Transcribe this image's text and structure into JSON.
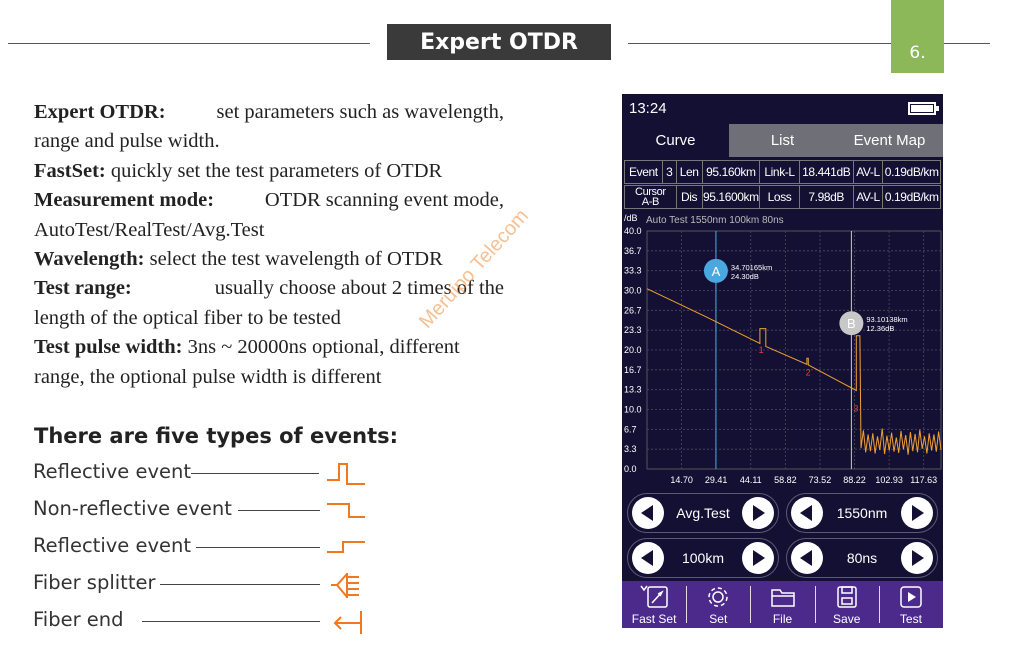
{
  "header": {
    "title": "Expert OTDR",
    "page_number": "6."
  },
  "description": {
    "items": [
      {
        "term": "Expert OTDR:",
        "text1": "set parameters such as wavelength,",
        "text2": "range and pulse width."
      },
      {
        "term": "FastSet:",
        "text1": "quickly set the test parameters of OTDR"
      },
      {
        "term": "Measurement mode:",
        "text1": "OTDR scanning event mode,",
        "text2": "AutoTest/RealTest/Avg.Test"
      },
      {
        "term": "Wavelength:",
        "text1": "select the test wavelength of OTDR"
      },
      {
        "term": "Test range:",
        "text1": "usually choose about 2 times of the",
        "text2": "length of the optical fiber to be tested"
      },
      {
        "term": "Test pulse width:",
        "text1": "3ns ~ 20000ns optional, different",
        "text2": "range, the optional pulse width is different"
      }
    ],
    "watermark": "Meruipo Telecom"
  },
  "events": {
    "title": "There are five types of events:",
    "items": [
      {
        "label": "Reflective event",
        "icon": "reflective-event-icon"
      },
      {
        "label": "Non-reflective event",
        "icon": "non-reflective-event-icon"
      },
      {
        "label": "Reflective event",
        "icon": "reflective-gain-event-icon"
      },
      {
        "label": "Fiber splitter",
        "icon": "fiber-splitter-icon"
      },
      {
        "label": "Fiber end",
        "icon": "fiber-end-icon"
      }
    ],
    "icon_color": "#f07820"
  },
  "device": {
    "time": "13:24",
    "tabs": {
      "curve": "Curve",
      "list": "List",
      "event_map": "Event Map"
    },
    "info": {
      "row1": {
        "event_label": "Event",
        "event_value": "3",
        "len_label": "Len",
        "len_value": "95.160km",
        "linkl_label": "Link-L",
        "linkl_value": "18.441dB",
        "avl_label": "AV-L",
        "avl_value": "0.19dB/km"
      },
      "row2": {
        "cursor_label1": "Cursor",
        "cursor_label2": "A-B",
        "dis_label": "Dis",
        "dis_value": "95.1600km",
        "loss_label": "Loss",
        "loss_value": "7.98dB",
        "avl_label": "AV-L",
        "avl_value": "0.19dB/km"
      }
    },
    "controls": {
      "mode": "Avg.Test",
      "wavelength": "1550nm",
      "range": "100km",
      "pulse": "80ns"
    },
    "bottom": {
      "fastset": "Fast Set",
      "set": "Set",
      "file": "File",
      "save": "Save",
      "test": "Test"
    }
  },
  "chart_data": {
    "type": "line",
    "ylabel": "/dB",
    "header_text": "Auto Test  1550nm  100km  80ns",
    "y_ticks": [
      "40.0",
      "36.7",
      "33.3",
      "30.0",
      "26.7",
      "23.3",
      "20.0",
      "16.7",
      "13.3",
      "10.0",
      "6.7",
      "3.3",
      "0.0"
    ],
    "x_ticks": [
      "14.70",
      "29.41",
      "44.11",
      "58.82",
      "73.52",
      "88.22",
      "102.93",
      "117.63"
    ],
    "ylim": [
      0,
      40
    ],
    "xlim": [
      0,
      125
    ],
    "grid": true,
    "trace": [
      [
        0,
        30.3
      ],
      [
        25,
        25.6
      ],
      [
        48,
        21.1
      ],
      [
        48,
        23.6
      ],
      [
        50.5,
        23.6
      ],
      [
        50.5,
        20.6
      ],
      [
        68,
        17.6
      ],
      [
        68,
        18.6
      ],
      [
        68.6,
        18.6
      ],
      [
        68.6,
        17.5
      ],
      [
        89,
        13.2
      ],
      [
        89,
        22.4
      ],
      [
        90.5,
        22.4
      ],
      [
        91,
        3.5
      ],
      [
        92,
        6.5
      ],
      [
        93,
        2.8
      ],
      [
        94,
        5.8
      ],
      [
        95,
        3.0
      ],
      [
        96,
        6.0
      ],
      [
        97,
        2.6
      ],
      [
        98,
        5.5
      ],
      [
        99,
        3.2
      ],
      [
        100,
        6.8
      ],
      [
        101,
        2.5
      ],
      [
        102,
        5.6
      ],
      [
        103,
        3.1
      ],
      [
        104,
        6.1
      ],
      [
        105,
        2.9
      ],
      [
        106,
        5.3
      ],
      [
        107,
        2.7
      ],
      [
        108,
        6.4
      ],
      [
        109,
        3.3
      ],
      [
        110,
        5.7
      ],
      [
        111,
        2.4
      ],
      [
        112,
        6.2
      ],
      [
        113,
        3.0
      ],
      [
        114,
        5.9
      ],
      [
        115,
        2.8
      ],
      [
        116,
        6.6
      ],
      [
        117,
        3.4
      ],
      [
        118,
        5.5
      ],
      [
        119,
        2.6
      ],
      [
        120,
        6.0
      ],
      [
        121,
        3.1
      ],
      [
        122,
        5.8
      ],
      [
        123,
        2.9
      ],
      [
        124,
        6.3
      ],
      [
        125,
        3.2
      ]
    ],
    "event_markers": [
      {
        "label": "1",
        "x": 48.5,
        "y": 20.0
      },
      {
        "label": "2",
        "x": 68.5,
        "y": 16.2
      },
      {
        "label": "3",
        "x": 88.8,
        "y": 10.2
      }
    ],
    "cursors": [
      {
        "name": "A",
        "x": 29.3,
        "readout1": "34.70165km",
        "readout2": "24.30dB",
        "color": "#4aa8e0"
      },
      {
        "name": "B",
        "x": 86.9,
        "readout1": "93.10138km",
        "readout2": "12.36dB",
        "color": "#c8c8c8"
      }
    ],
    "trace_color": "#f0a030"
  }
}
